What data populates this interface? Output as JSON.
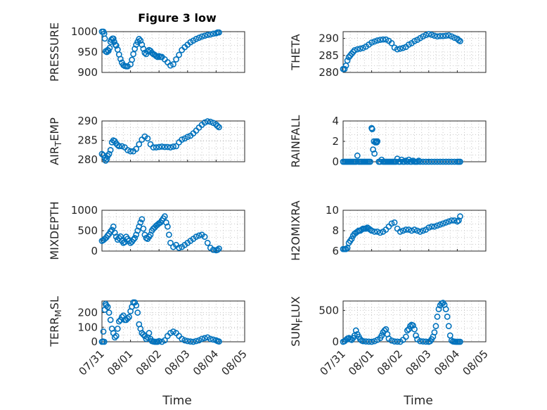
{
  "figure": {
    "title": "Figure 3 low",
    "xlabel": "Time"
  },
  "chart_data": [
    {
      "type": "scatter",
      "ylabel": "PRESSURE",
      "ylim": [
        900,
        1000
      ],
      "xlim": [
        0,
        5
      ],
      "yticks": [
        900,
        950,
        1000
      ],
      "xticks": [
        "07/31",
        "08/01",
        "08/02",
        "08/03",
        "08/04",
        "08/05"
      ],
      "x": [
        0.0,
        0.05,
        0.08,
        0.1,
        0.13,
        0.17,
        0.2,
        0.23,
        0.27,
        0.3,
        0.33,
        0.37,
        0.4,
        0.43,
        0.47,
        0.5,
        0.55,
        0.6,
        0.65,
        0.7,
        0.75,
        0.8,
        0.85,
        0.9,
        1.0,
        1.05,
        1.1,
        1.15,
        1.2,
        1.25,
        1.3,
        1.35,
        1.4,
        1.45,
        1.5,
        1.55,
        1.6,
        1.65,
        1.7,
        1.75,
        1.8,
        1.85,
        1.9,
        1.95,
        2.0,
        2.05,
        2.1,
        2.2,
        2.3,
        2.4,
        2.5,
        2.6,
        2.7,
        2.8,
        2.9,
        3.0,
        3.1,
        3.2,
        3.3,
        3.4,
        3.5,
        3.6,
        3.7,
        3.8,
        3.9,
        4.0,
        4.05,
        4.1
      ],
      "y": [
        1000,
        1000,
        995,
        983,
        952,
        950,
        955,
        953,
        960,
        975,
        980,
        983,
        983,
        975,
        968,
        966,
        956,
        944,
        933,
        924,
        918,
        916,
        915,
        915,
        920,
        931,
        945,
        958,
        968,
        975,
        982,
        978,
        968,
        958,
        948,
        945,
        952,
        955,
        953,
        948,
        945,
        943,
        940,
        938,
        940,
        938,
        938,
        932,
        925,
        917,
        920,
        932,
        943,
        955,
        962,
        968,
        974,
        978,
        982,
        985,
        988,
        990,
        992,
        993,
        995,
        996,
        998,
        998
      ]
    },
    {
      "type": "scatter",
      "ylabel": "THETA",
      "ylim": [
        280,
        292
      ],
      "xlim": [
        0,
        5
      ],
      "yticks": [
        280,
        285,
        290
      ],
      "xticks": [
        "07/31",
        "08/01",
        "08/02",
        "08/03",
        "08/04",
        "08/05"
      ],
      "x": [
        0.0,
        0.05,
        0.1,
        0.15,
        0.2,
        0.25,
        0.3,
        0.35,
        0.4,
        0.5,
        0.6,
        0.7,
        0.8,
        0.9,
        1.0,
        1.1,
        1.2,
        1.3,
        1.4,
        1.5,
        1.6,
        1.7,
        1.8,
        1.9,
        2.0,
        2.1,
        2.2,
        2.3,
        2.4,
        2.5,
        2.6,
        2.7,
        2.8,
        2.9,
        3.0,
        3.1,
        3.2,
        3.3,
        3.4,
        3.5,
        3.6,
        3.7,
        3.8,
        3.9,
        4.0,
        4.05,
        4.1
      ],
      "y": [
        281,
        281,
        282,
        283.5,
        284.5,
        285,
        285.5,
        286,
        286.5,
        286.8,
        287,
        287.2,
        287.6,
        288.2,
        288.8,
        289.1,
        289.4,
        289.6,
        289.7,
        289.7,
        289.3,
        288.6,
        287.3,
        286.8,
        287,
        287.2,
        287.5,
        288.2,
        288.6,
        289.2,
        289.6,
        290.1,
        290.6,
        291,
        291.3,
        291.1,
        290.8,
        290.6,
        290.7,
        290.7,
        290.8,
        290.9,
        290.6,
        290.2,
        289.9,
        289.5,
        289.2
      ]
    },
    {
      "type": "scatter",
      "ylabel": "AIR_TEMP",
      "ylim": [
        279.5,
        290
      ],
      "xlim": [
        0,
        5
      ],
      "yticks": [
        280,
        285,
        290
      ],
      "xticks": [
        "07/31",
        "08/01",
        "08/02",
        "08/03",
        "08/04",
        "08/05"
      ],
      "x": [
        0.0,
        0.05,
        0.1,
        0.13,
        0.17,
        0.2,
        0.25,
        0.3,
        0.35,
        0.4,
        0.45,
        0.5,
        0.55,
        0.6,
        0.7,
        0.8,
        0.9,
        1.0,
        1.1,
        1.2,
        1.3,
        1.4,
        1.5,
        1.6,
        1.7,
        1.8,
        1.9,
        2.0,
        2.1,
        2.2,
        2.3,
        2.4,
        2.5,
        2.6,
        2.7,
        2.8,
        2.9,
        3.0,
        3.1,
        3.2,
        3.3,
        3.4,
        3.5,
        3.6,
        3.7,
        3.8,
        3.9,
        4.0,
        4.05,
        4.1
      ],
      "y": [
        281.5,
        281.2,
        280.5,
        279.8,
        280.2,
        281,
        281.5,
        282.5,
        284.5,
        285,
        284.8,
        284.2,
        283.8,
        283.5,
        283.5,
        283.2,
        282.5,
        282.2,
        282.2,
        282.8,
        284,
        285.2,
        286,
        285.5,
        284,
        283.2,
        283.2,
        283.3,
        283.4,
        283.3,
        283.3,
        283.2,
        283.4,
        283.5,
        284.5,
        285.2,
        285.5,
        285.9,
        286.2,
        286.8,
        287.5,
        288.3,
        289,
        289.6,
        289.9,
        289.8,
        289.5,
        289.1,
        288.7,
        288.4
      ]
    },
    {
      "type": "scatter",
      "ylabel": "RAINFALL",
      "ylim": [
        0,
        4
      ],
      "xlim": [
        0,
        5
      ],
      "yticks": [
        0,
        2,
        4
      ],
      "xticks": [
        "07/31",
        "08/01",
        "08/02",
        "08/03",
        "08/04",
        "08/05"
      ],
      "x": [
        0.0,
        0.05,
        0.1,
        0.15,
        0.2,
        0.25,
        0.3,
        0.35,
        0.4,
        0.45,
        0.5,
        0.55,
        0.6,
        0.65,
        0.7,
        0.75,
        0.8,
        0.85,
        0.9,
        0.95,
        1.0,
        1.02,
        1.05,
        1.08,
        1.1,
        1.13,
        1.15,
        1.18,
        1.2,
        1.25,
        1.3,
        1.35,
        1.4,
        1.45,
        1.5,
        1.55,
        1.6,
        1.65,
        1.7,
        1.75,
        1.8,
        1.85,
        1.9,
        1.95,
        2.0,
        2.05,
        2.1,
        2.15,
        2.2,
        2.25,
        2.3,
        2.35,
        2.4,
        2.45,
        2.5,
        2.55,
        2.6,
        2.65,
        2.7,
        2.8,
        2.9,
        3.0,
        3.1,
        3.2,
        3.3,
        3.4,
        3.5,
        3.6,
        3.7,
        3.8,
        3.9,
        4.0,
        4.05,
        4.1
      ],
      "y": [
        0,
        0,
        0,
        0,
        0,
        0,
        0,
        0,
        0,
        0,
        0.6,
        0,
        0,
        0,
        0,
        0,
        0,
        0,
        0,
        0,
        3.3,
        3.2,
        1.2,
        2,
        0.8,
        1.9,
        2,
        1.9,
        2,
        0,
        0,
        0.2,
        0,
        0,
        0,
        0,
        0,
        0,
        0,
        0,
        0,
        0,
        0.3,
        0,
        0,
        0.2,
        0,
        0,
        0.1,
        0,
        0.2,
        0,
        0,
        0.1,
        0,
        0,
        0,
        0.1,
        0,
        0,
        0,
        0,
        0,
        0,
        0,
        0,
        0,
        0,
        0,
        0,
        0,
        0,
        0,
        0
      ]
    },
    {
      "type": "scatter",
      "ylabel": "MIXDEPTH",
      "ylim": [
        0,
        1000
      ],
      "xlim": [
        0,
        5
      ],
      "yticks": [
        0,
        500,
        1000
      ],
      "xticks": [
        "07/31",
        "08/01",
        "08/02",
        "08/03",
        "08/04",
        "08/05"
      ],
      "x": [
        0.0,
        0.05,
        0.1,
        0.15,
        0.2,
        0.25,
        0.3,
        0.35,
        0.4,
        0.45,
        0.5,
        0.55,
        0.6,
        0.65,
        0.7,
        0.75,
        0.8,
        0.85,
        0.9,
        0.95,
        1.0,
        1.05,
        1.1,
        1.15,
        1.2,
        1.25,
        1.3,
        1.35,
        1.4,
        1.45,
        1.5,
        1.55,
        1.6,
        1.65,
        1.7,
        1.75,
        1.8,
        1.85,
        1.9,
        1.95,
        2.0,
        2.05,
        2.1,
        2.15,
        2.2,
        2.25,
        2.3,
        2.35,
        2.4,
        2.5,
        2.6,
        2.7,
        2.8,
        2.9,
        3.0,
        3.1,
        3.2,
        3.3,
        3.4,
        3.5,
        3.6,
        3.7,
        3.8,
        3.9,
        4.0,
        4.05,
        4.1
      ],
      "y": [
        250,
        270,
        300,
        330,
        380,
        420,
        480,
        520,
        600,
        450,
        350,
        280,
        320,
        360,
        250,
        200,
        220,
        350,
        300,
        250,
        200,
        230,
        280,
        320,
        400,
        500,
        600,
        700,
        780,
        550,
        400,
        320,
        300,
        350,
        400,
        500,
        550,
        580,
        620,
        650,
        680,
        700,
        750,
        800,
        850,
        700,
        600,
        400,
        200,
        100,
        150,
        80,
        100,
        150,
        200,
        250,
        300,
        350,
        380,
        400,
        350,
        200,
        80,
        30,
        20,
        30,
        60
      ]
    },
    {
      "type": "scatter",
      "ylabel": "H2OMIXRA",
      "ylim": [
        6,
        10
      ],
      "xlim": [
        0,
        5
      ],
      "yticks": [
        6,
        8,
        10
      ],
      "xticks": [
        "07/31",
        "08/01",
        "08/02",
        "08/03",
        "08/04",
        "08/05"
      ],
      "x": [
        0.0,
        0.05,
        0.1,
        0.15,
        0.2,
        0.25,
        0.3,
        0.35,
        0.4,
        0.45,
        0.5,
        0.55,
        0.6,
        0.65,
        0.7,
        0.75,
        0.8,
        0.85,
        0.9,
        0.95,
        1.0,
        1.1,
        1.2,
        1.3,
        1.4,
        1.5,
        1.6,
        1.7,
        1.8,
        1.9,
        2.0,
        2.1,
        2.2,
        2.3,
        2.4,
        2.5,
        2.6,
        2.7,
        2.8,
        2.9,
        3.0,
        3.1,
        3.2,
        3.3,
        3.4,
        3.5,
        3.6,
        3.7,
        3.8,
        3.9,
        4.0,
        4.05,
        4.1
      ],
      "y": [
        6.2,
        6.2,
        6.2,
        6.3,
        6.8,
        7.0,
        7.2,
        7.5,
        7.7,
        7.8,
        7.9,
        8.0,
        8.0,
        8.1,
        8.2,
        8.2,
        8.2,
        8.3,
        8.2,
        8.1,
        8.0,
        7.9,
        7.9,
        7.8,
        7.9,
        8.1,
        8.4,
        8.7,
        8.8,
        8.2,
        7.9,
        8.0,
        8.1,
        8.1,
        8.0,
        8.1,
        8.0,
        7.9,
        8.0,
        8.1,
        8.3,
        8.4,
        8.4,
        8.5,
        8.6,
        8.7,
        8.8,
        8.9,
        9.0,
        9.0,
        8.9,
        9.0,
        9.4
      ]
    },
    {
      "type": "scatter",
      "ylabel": "TERR_MSL",
      "ylim": [
        0,
        280
      ],
      "xlim": [
        0,
        5
      ],
      "yticks": [
        0,
        100,
        200
      ],
      "xticks": [
        "07/31",
        "08/01",
        "08/02",
        "08/03",
        "08/04",
        "08/05"
      ],
      "x": [
        0.0,
        0.03,
        0.05,
        0.08,
        0.1,
        0.13,
        0.15,
        0.2,
        0.25,
        0.3,
        0.35,
        0.4,
        0.45,
        0.5,
        0.55,
        0.6,
        0.65,
        0.7,
        0.75,
        0.8,
        0.85,
        0.9,
        0.95,
        1.0,
        1.05,
        1.1,
        1.15,
        1.2,
        1.25,
        1.3,
        1.35,
        1.4,
        1.45,
        1.5,
        1.55,
        1.6,
        1.65,
        1.7,
        1.75,
        1.8,
        1.85,
        1.9,
        1.95,
        2.0,
        2.1,
        2.2,
        2.3,
        2.4,
        2.5,
        2.6,
        2.7,
        2.8,
        2.9,
        3.0,
        3.1,
        3.2,
        3.3,
        3.4,
        3.5,
        3.6,
        3.7,
        3.8,
        3.9,
        4.0,
        4.05,
        4.1
      ],
      "y": [
        0,
        2,
        70,
        0,
        220,
        260,
        250,
        240,
        200,
        150,
        90,
        60,
        30,
        40,
        90,
        140,
        150,
        170,
        180,
        150,
        150,
        160,
        170,
        210,
        240,
        270,
        270,
        250,
        200,
        120,
        90,
        60,
        50,
        40,
        20,
        30,
        60,
        20,
        5,
        2,
        0,
        0,
        0,
        5,
        0,
        10,
        40,
        60,
        70,
        60,
        40,
        20,
        10,
        5,
        2,
        0,
        5,
        10,
        20,
        25,
        30,
        20,
        15,
        10,
        5,
        2
      ]
    },
    {
      "type": "scatter",
      "ylabel": "SUN_FLUX",
      "ylim": [
        0,
        650
      ],
      "xlim": [
        0,
        5
      ],
      "yticks": [
        0,
        500
      ],
      "xticks": [
        "07/31",
        "08/01",
        "08/02",
        "08/03",
        "08/04",
        "08/05"
      ],
      "x": [
        0.0,
        0.05,
        0.1,
        0.15,
        0.2,
        0.25,
        0.3,
        0.35,
        0.4,
        0.45,
        0.5,
        0.55,
        0.6,
        0.65,
        0.7,
        0.8,
        0.9,
        1.0,
        1.1,
        1.2,
        1.3,
        1.35,
        1.4,
        1.45,
        1.5,
        1.55,
        1.6,
        1.7,
        1.8,
        1.9,
        2.0,
        2.1,
        2.2,
        2.25,
        2.3,
        2.35,
        2.4,
        2.45,
        2.5,
        2.55,
        2.6,
        2.7,
        2.8,
        2.9,
        3.0,
        3.05,
        3.1,
        3.15,
        3.2,
        3.25,
        3.3,
        3.35,
        3.4,
        3.45,
        3.5,
        3.55,
        3.6,
        3.65,
        3.7,
        3.75,
        3.8,
        3.85,
        3.9,
        3.95,
        4.0,
        4.05,
        4.1
      ],
      "y": [
        0,
        10,
        30,
        50,
        60,
        40,
        30,
        60,
        100,
        180,
        120,
        80,
        40,
        20,
        10,
        5,
        2,
        0,
        10,
        30,
        60,
        100,
        150,
        180,
        200,
        120,
        50,
        20,
        5,
        2,
        0,
        30,
        80,
        180,
        200,
        250,
        270,
        260,
        200,
        100,
        40,
        10,
        5,
        2,
        0,
        10,
        40,
        80,
        150,
        250,
        400,
        520,
        580,
        610,
        620,
        590,
        520,
        400,
        250,
        100,
        20,
        5,
        2,
        0,
        0,
        0,
        0
      ]
    }
  ]
}
